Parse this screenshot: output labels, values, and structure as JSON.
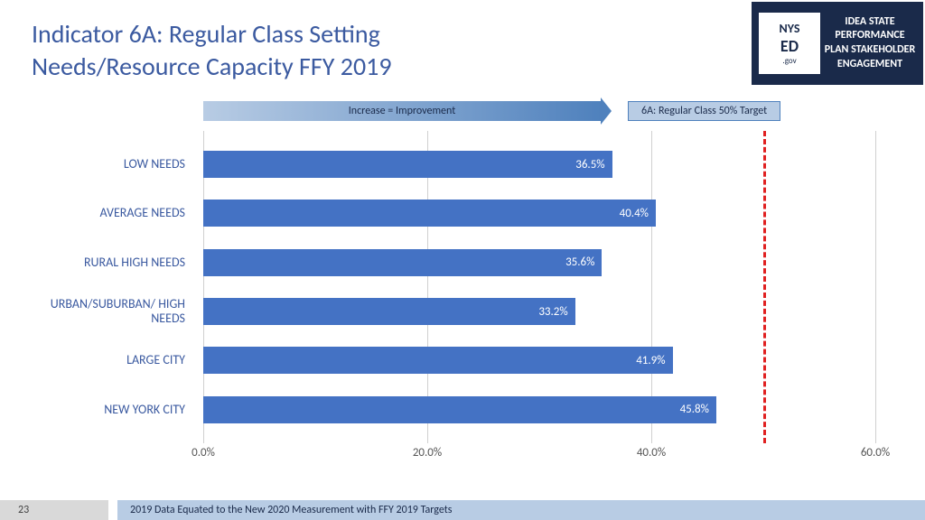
{
  "title_line1": "Indicator 6A: Regular Class Setting",
  "title_line2": "Needs/Resource Capacity FFY 2019",
  "logo": {
    "nys": "NYS",
    "ed": "ED",
    "gov": ".gov",
    "text": "IDEA STATE PERFORMANCE PLAN STAKEHOLDER ENGAGEMENT"
  },
  "arrow_label": "Increase = Improvement",
  "target_label": "6A: Regular Class 50% Target",
  "chart": {
    "type": "bar-horizontal",
    "xlim": [
      0,
      60
    ],
    "xticks": [
      0,
      20,
      40,
      60
    ],
    "xtick_labels": [
      "0.0%",
      "20.0%",
      "40.0%",
      "60.0%"
    ],
    "target_value": 50,
    "target_color": "#e02020",
    "bar_color": "#4472c4",
    "label_color": "#3b5aa0",
    "grid_color": "#d0d0d0",
    "categories": [
      {
        "label": "LOW NEEDS",
        "value": 36.5,
        "display": "36.5%"
      },
      {
        "label": "AVERAGE NEEDS",
        "value": 40.4,
        "display": "40.4%"
      },
      {
        "label": "RURAL HIGH NEEDS",
        "value": 35.6,
        "display": "35.6%"
      },
      {
        "label": "URBAN/SUBURBAN/ HIGH NEEDS",
        "value": 33.2,
        "display": "33.2%"
      },
      {
        "label": "LARGE CITY",
        "value": 41.9,
        "display": "41.9%"
      },
      {
        "label": "NEW YORK CITY",
        "value": 45.8,
        "display": "45.8%"
      }
    ]
  },
  "footer": {
    "page": "23",
    "text": "2019 Data Equated to the New 2020 Measurement with FFY 2019 Targets"
  }
}
